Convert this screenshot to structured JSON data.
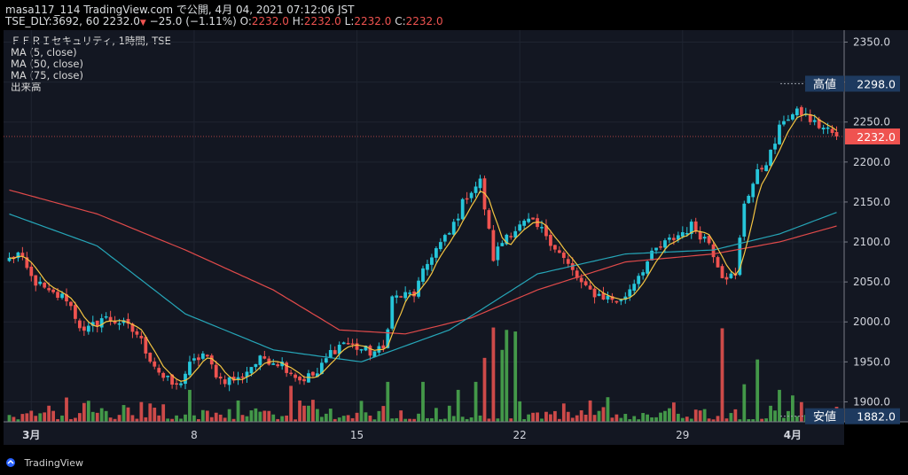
{
  "header": {
    "line1": "masa117_114 TradingView.com で公開, 4月 04, 2021 07:12:06 JST",
    "symbol": "TSE_DLY:3692, 60",
    "price": "2232.0",
    "arrow": "▼",
    "change": "−25.0 (−1.11%)",
    "o_label": "O:",
    "o_val": "2232.0",
    "h_label": "H:",
    "h_val": "2232.0",
    "l_label": "L:",
    "l_val": "2232.0",
    "c_label": "C:",
    "c_val": "2232.0"
  },
  "legend": {
    "title": "ＦＦＲＩセキュリティ, 1時間, TSE",
    "ma5": "MA (5, close)",
    "ma50": "MA (50, close)",
    "ma75": "MA (75, close)",
    "volume": "出来高"
  },
  "brand": "TradingView",
  "colors": {
    "up": "#26c6da",
    "down": "#ef5350",
    "vol_up": "#4caf50",
    "vol_down": "#ef5350",
    "ma5": "#f5c542",
    "ma50": "#26a6b8",
    "ma75": "#e04a4a",
    "label_bg": "#1e3a5f",
    "price_tag": "#ef5350",
    "header_down": "#ef5350"
  },
  "chart_data": {
    "type": "candlestick",
    "ylim": [
      1875,
      2365
    ],
    "yticks": [
      2350,
      2300,
      2250,
      2200,
      2150,
      2100,
      2050,
      2000,
      1950,
      1900
    ],
    "ytick_labels": [
      "2350.0",
      "2300.0",
      "2250.0",
      "2200.0",
      "2150.0",
      "2100.0",
      "2050.0",
      "2000.0",
      "1950.0",
      "1900.0"
    ],
    "xticks": [
      {
        "bar": 5,
        "label": "3月",
        "bold": true
      },
      {
        "bar": 42,
        "label": "8",
        "bold": false
      },
      {
        "bar": 79,
        "label": "15",
        "bold": false
      },
      {
        "bar": 116,
        "label": "22",
        "bold": false
      },
      {
        "bar": 153,
        "label": "29",
        "bold": false
      },
      {
        "bar": 178,
        "label": "4月",
        "bold": true
      }
    ],
    "labels": {
      "high": {
        "text": "高値",
        "value": "2298.0",
        "y": 2298
      },
      "low": {
        "text": "安値",
        "value": "1882.0",
        "y": 1882
      },
      "last": {
        "value": "2232.0",
        "y": 2232
      }
    },
    "anchors": [
      [
        0,
        2078
      ],
      [
        2,
        2085
      ],
      [
        5,
        2055
      ],
      [
        9,
        2035
      ],
      [
        13,
        2030
      ],
      [
        17,
        1985
      ],
      [
        21,
        2005
      ],
      [
        25,
        2000
      ],
      [
        29,
        1985
      ],
      [
        32,
        1955
      ],
      [
        35,
        1930
      ],
      [
        38,
        1918
      ],
      [
        41,
        1945
      ],
      [
        44,
        1960
      ],
      [
        48,
        1928
      ],
      [
        52,
        1928
      ],
      [
        55,
        1945
      ],
      [
        58,
        1955
      ],
      [
        62,
        1948
      ],
      [
        66,
        1928
      ],
      [
        70,
        1935
      ],
      [
        73,
        1962
      ],
      [
        76,
        1975
      ],
      [
        79,
        1968
      ],
      [
        82,
        1962
      ],
      [
        85,
        1965
      ],
      [
        87,
        2030
      ],
      [
        92,
        2035
      ],
      [
        96,
        2085
      ],
      [
        100,
        2110
      ],
      [
        104,
        2160
      ],
      [
        107,
        2175
      ],
      [
        110,
        2080
      ],
      [
        113,
        2110
      ],
      [
        118,
        2125
      ],
      [
        122,
        2110
      ],
      [
        127,
        2070
      ],
      [
        131,
        2040
      ],
      [
        135,
        2032
      ],
      [
        139,
        2025
      ],
      [
        143,
        2060
      ],
      [
        147,
        2090
      ],
      [
        151,
        2105
      ],
      [
        155,
        2120
      ],
      [
        159,
        2100
      ],
      [
        162,
        2060
      ],
      [
        165,
        2055
      ],
      [
        167,
        2150
      ],
      [
        170,
        2185
      ],
      [
        173,
        2210
      ],
      [
        176,
        2255
      ],
      [
        180,
        2262
      ],
      [
        183,
        2248
      ],
      [
        186,
        2240
      ],
      [
        188,
        2232
      ]
    ],
    "volume_spikes": [
      [
        110,
        1993
      ],
      [
        113,
        1990
      ],
      [
        115,
        1988
      ],
      [
        108,
        1955
      ],
      [
        112,
        1965
      ],
      [
        162,
        1992
      ],
      [
        170,
        1953
      ],
      [
        167,
        1922
      ],
      [
        175,
        1915
      ],
      [
        178,
        1908
      ],
      [
        64,
        1920
      ],
      [
        86,
        1925
      ],
      [
        94,
        1925
      ],
      [
        41,
        1915
      ],
      [
        102,
        1915
      ],
      [
        106,
        1925
      ]
    ],
    "ma_50": [
      [
        0,
        2135
      ],
      [
        20,
        2095
      ],
      [
        40,
        2010
      ],
      [
        60,
        1965
      ],
      [
        80,
        1950
      ],
      [
        100,
        1990
      ],
      [
        120,
        2060
      ],
      [
        140,
        2085
      ],
      [
        160,
        2090
      ],
      [
        175,
        2110
      ],
      [
        188,
        2137
      ]
    ],
    "ma_75": [
      [
        0,
        2165
      ],
      [
        20,
        2135
      ],
      [
        40,
        2090
      ],
      [
        60,
        2040
      ],
      [
        75,
        1990
      ],
      [
        90,
        1985
      ],
      [
        105,
        2005
      ],
      [
        120,
        2040
      ],
      [
        140,
        2075
      ],
      [
        160,
        2085
      ],
      [
        175,
        2100
      ],
      [
        188,
        2120
      ]
    ],
    "last_price": 2232,
    "bars": 189
  }
}
